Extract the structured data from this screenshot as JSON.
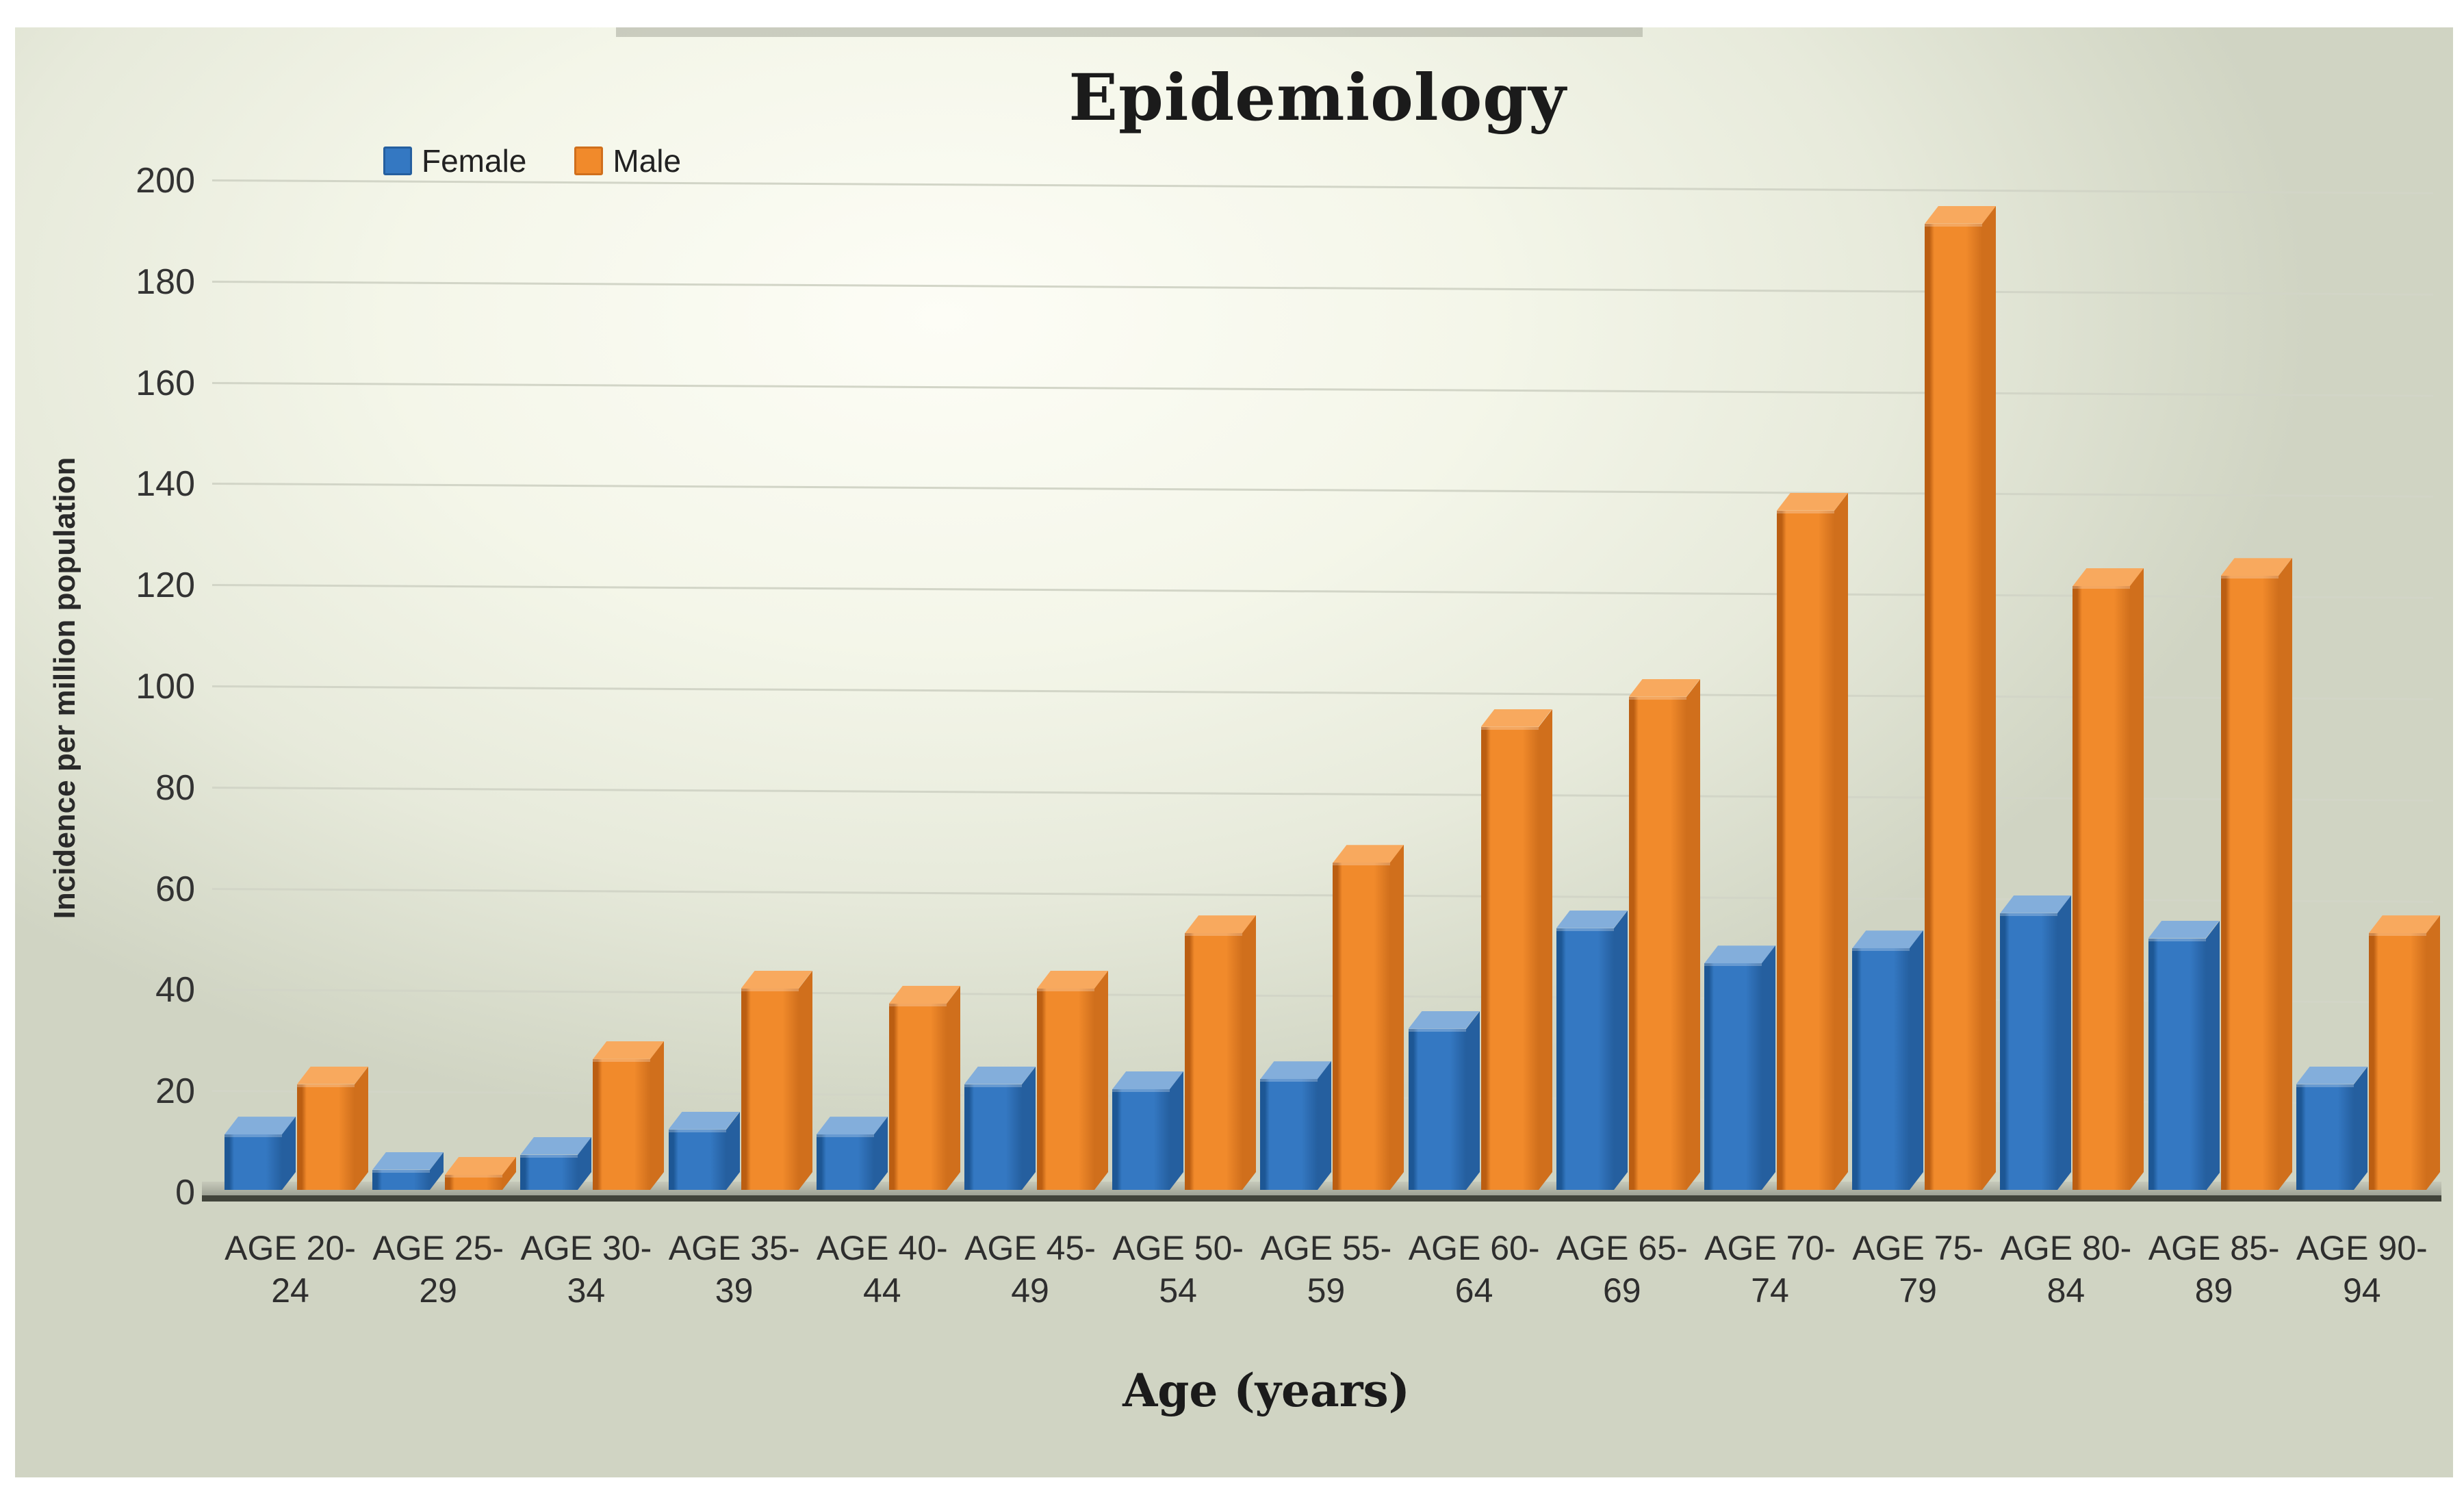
{
  "title": "Epidemiology",
  "legend": {
    "items": [
      {
        "label": "Female",
        "color": "#3478C2"
      },
      {
        "label": "Male",
        "color": "#F18A2B"
      }
    ]
  },
  "y_axis": {
    "title": "Incidence per million population",
    "ticks": [
      0,
      20,
      40,
      60,
      80,
      100,
      120,
      140,
      160,
      180,
      200
    ],
    "max": 200
  },
  "x_axis": {
    "title": "Age (years)"
  },
  "chart_data": {
    "type": "bar",
    "title": "Epidemiology",
    "xlabel": "Age (years)",
    "ylabel": "Incidence per million population",
    "ylim": [
      0,
      200
    ],
    "grid": true,
    "legend_position": "top-left",
    "categories": [
      "AGE 20-24",
      "AGE 25-29",
      "AGE 30-34",
      "AGE 35-39",
      "AGE 40-44",
      "AGE 45-49",
      "AGE 50-54",
      "AGE 55-59",
      "AGE 60-64",
      "AGE 65-69",
      "AGE 70-74",
      "AGE 75-79",
      "AGE 80-84",
      "AGE 85-89",
      "AGE 90-94"
    ],
    "category_lines": [
      [
        "AGE 20-",
        "24"
      ],
      [
        "AGE 25-",
        "29"
      ],
      [
        "AGE 30-",
        "34"
      ],
      [
        "AGE 35-",
        "39"
      ],
      [
        "AGE 40-",
        "44"
      ],
      [
        "AGE 45-",
        "49"
      ],
      [
        "AGE 50-",
        "54"
      ],
      [
        "AGE 55-",
        "59"
      ],
      [
        "AGE 60-",
        "64"
      ],
      [
        "AGE 65-",
        "69"
      ],
      [
        "AGE 70-",
        "74"
      ],
      [
        "AGE 75-",
        "79"
      ],
      [
        "AGE 80-",
        "84"
      ],
      [
        "AGE 85-",
        "89"
      ],
      [
        "AGE 90-",
        "94"
      ]
    ],
    "series": [
      {
        "name": "Female",
        "values": [
          11,
          4,
          7,
          12,
          11,
          21,
          20,
          22,
          32,
          52,
          45,
          48,
          55,
          50,
          21
        ],
        "color": "#3478C2",
        "color_dark": "#1D5795",
        "color_top": "#83AEDB",
        "color_side": "#255F9F"
      },
      {
        "name": "Male",
        "values": [
          21,
          3,
          26,
          40,
          37,
          40,
          51,
          65,
          92,
          98,
          135,
          192,
          120,
          122,
          51
        ],
        "color": "#F18A2B",
        "color_dark": "#BB5E12",
        "color_top": "#F8A95E",
        "color_side": "#D06F1C"
      }
    ]
  }
}
